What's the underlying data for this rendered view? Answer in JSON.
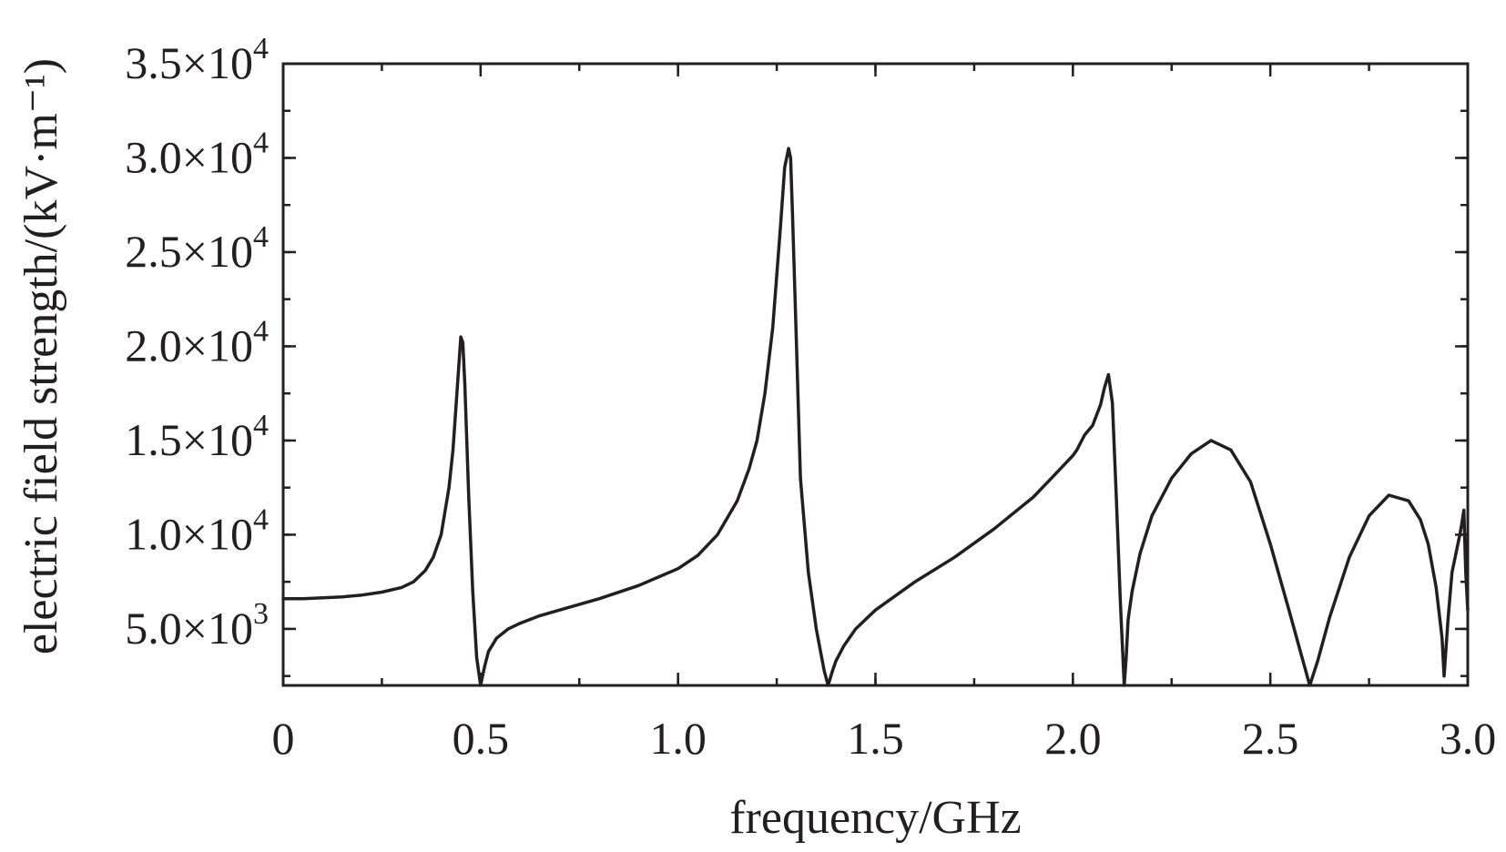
{
  "chart_data": {
    "type": "line",
    "title": "",
    "xlabel": "frequency/GHz",
    "ylabel": "electric field strength/(kV·m⁻¹)",
    "xlim": [
      0,
      3.0
    ],
    "ylim": [
      2000,
      35000
    ],
    "grid": false,
    "legend": "none",
    "x_ticks": [
      {
        "value": 0,
        "label": "0"
      },
      {
        "value": 0.5,
        "label": "0.5"
      },
      {
        "value": 1.0,
        "label": "1.0"
      },
      {
        "value": 1.5,
        "label": "1.5"
      },
      {
        "value": 2.0,
        "label": "2.0"
      },
      {
        "value": 2.5,
        "label": "2.5"
      },
      {
        "value": 3.0,
        "label": "3.0"
      }
    ],
    "x_minor_step": 0.25,
    "y_ticks": [
      {
        "value": 5000,
        "mant": "5.0×10",
        "exp": "3"
      },
      {
        "value": 10000,
        "mant": "1.0×10",
        "exp": "4"
      },
      {
        "value": 15000,
        "mant": "1.5×10",
        "exp": "4"
      },
      {
        "value": 20000,
        "mant": "2.0×10",
        "exp": "4"
      },
      {
        "value": 25000,
        "mant": "2.5×10",
        "exp": "4"
      },
      {
        "value": 30000,
        "mant": "3.0×10",
        "exp": "4"
      },
      {
        "value": 35000,
        "mant": "3.5×10",
        "exp": "4"
      }
    ],
    "y_minor_step": 2500,
    "line_color": "#231f20",
    "series": [
      {
        "x": [
          0,
          0.05,
          0.1,
          0.15,
          0.2,
          0.25,
          0.3,
          0.33,
          0.36,
          0.38,
          0.4,
          0.42,
          0.43,
          0.44,
          0.45,
          0.455,
          0.46,
          0.47,
          0.48,
          0.49,
          0.5,
          0.51,
          0.52,
          0.54,
          0.57,
          0.6,
          0.65,
          0.7,
          0.8,
          0.9,
          1.0,
          1.05,
          1.1,
          1.15,
          1.18,
          1.2,
          1.22,
          1.24,
          1.26,
          1.27,
          1.28,
          1.285,
          1.29,
          1.3,
          1.31,
          1.33,
          1.35,
          1.37,
          1.38,
          1.39,
          1.4,
          1.42,
          1.45,
          1.5,
          1.6,
          1.7,
          1.8,
          1.9,
          1.95,
          2.0,
          2.01,
          2.02,
          2.03,
          2.05,
          2.07,
          2.08,
          2.09,
          2.1,
          2.11,
          2.12,
          2.13,
          2.135,
          2.14,
          2.15,
          2.17,
          2.2,
          2.25,
          2.3,
          2.35,
          2.4,
          2.45,
          2.5,
          2.55,
          2.58,
          2.6,
          2.62,
          2.65,
          2.7,
          2.75,
          2.8,
          2.85,
          2.88,
          2.9,
          2.92,
          2.935,
          2.94,
          2.95,
          2.96,
          2.97,
          2.98,
          2.985,
          2.99,
          2.995,
          3.0
        ],
        "y": [
          6600,
          6600,
          6650,
          6700,
          6800,
          6950,
          7200,
          7500,
          8100,
          8800,
          10000,
          12500,
          14500,
          17500,
          20500,
          20200,
          18000,
          12000,
          7000,
          3500,
          2000,
          3000,
          3800,
          4500,
          5000,
          5300,
          5700,
          6000,
          6600,
          7300,
          8200,
          8900,
          10000,
          11800,
          13500,
          15000,
          17500,
          21000,
          26500,
          29500,
          30500,
          30000,
          27000,
          20000,
          13000,
          8000,
          5000,
          2800,
          2000,
          2700,
          3300,
          4100,
          5000,
          6000,
          7500,
          8800,
          10300,
          12000,
          13100,
          14200,
          14500,
          14900,
          15300,
          15800,
          16900,
          17800,
          18500,
          17000,
          12000,
          6500,
          2000,
          3500,
          5500,
          7000,
          9000,
          11000,
          13000,
          14300,
          15000,
          14500,
          12800,
          9500,
          5800,
          3500,
          2000,
          3300,
          5600,
          8800,
          11000,
          12100,
          11800,
          10800,
          9500,
          7200,
          4500,
          2500,
          5500,
          8000,
          9000,
          10000,
          10600,
          11300,
          8000,
          6000
        ]
      }
    ]
  }
}
